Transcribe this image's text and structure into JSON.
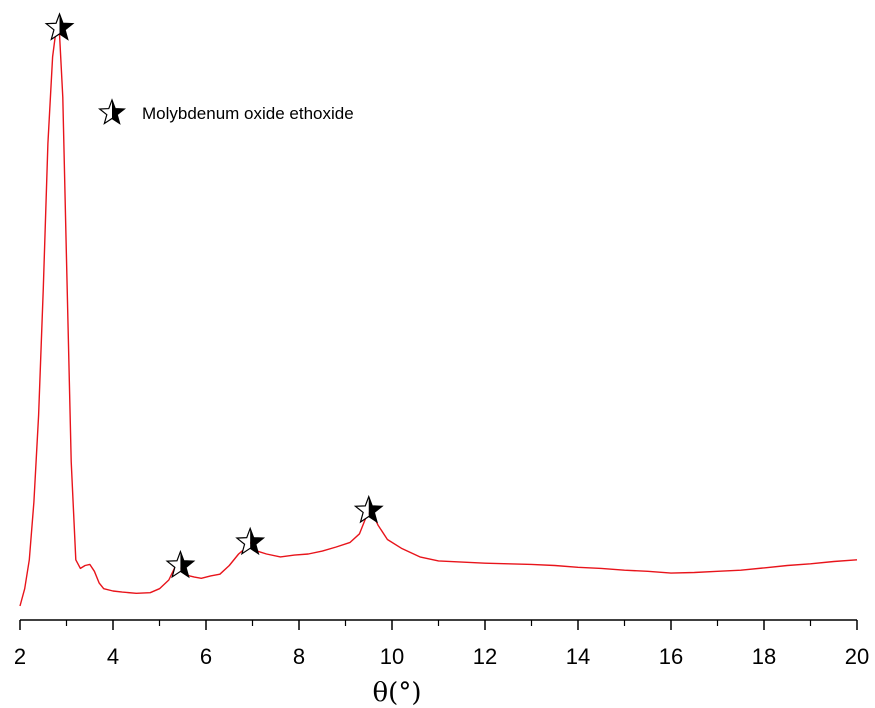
{
  "chart_data": {
    "type": "line",
    "title": "",
    "xlabel": "θ(°)",
    "ylabel": "",
    "xlim": [
      2,
      20
    ],
    "ylim": [
      0,
      1
    ],
    "grid": false,
    "x_ticks": [
      "2",
      "4",
      "6",
      "8",
      "10",
      "12",
      "14",
      "16",
      "18",
      "20"
    ],
    "y_ticks": [],
    "legend": {
      "placement": "top-left",
      "marker": "half-filled star",
      "label": "Molybdenum oxide ethoxide"
    },
    "series": [
      {
        "name": "",
        "color": "#e8141b",
        "x": [
          2.0,
          2.1,
          2.2,
          2.3,
          2.4,
          2.5,
          2.6,
          2.7,
          2.78,
          2.85,
          2.92,
          3.0,
          3.1,
          3.2,
          3.3,
          3.4,
          3.5,
          3.6,
          3.7,
          3.8,
          4.0,
          4.2,
          4.5,
          4.8,
          5.0,
          5.2,
          5.35,
          5.45,
          5.55,
          5.65,
          5.75,
          5.9,
          6.1,
          6.3,
          6.5,
          6.7,
          6.85,
          6.95,
          7.1,
          7.3,
          7.6,
          7.9,
          8.2,
          8.5,
          8.8,
          9.1,
          9.3,
          9.45,
          9.55,
          9.7,
          9.9,
          10.2,
          10.6,
          11.0,
          11.5,
          12.0,
          12.5,
          13.0,
          13.5,
          14.0,
          14.5,
          15.0,
          15.5,
          16.0,
          16.5,
          17.0,
          17.5,
          18.0,
          18.5,
          19.0,
          19.5,
          20.0
        ],
        "y": [
          0.0,
          0.03,
          0.08,
          0.18,
          0.33,
          0.55,
          0.8,
          0.95,
          1.0,
          0.99,
          0.88,
          0.6,
          0.25,
          0.08,
          0.065,
          0.07,
          0.072,
          0.06,
          0.04,
          0.03,
          0.026,
          0.024,
          0.022,
          0.023,
          0.03,
          0.045,
          0.07,
          0.065,
          0.055,
          0.052,
          0.05,
          0.048,
          0.052,
          0.055,
          0.07,
          0.09,
          0.1,
          0.11,
          0.095,
          0.09,
          0.085,
          0.088,
          0.09,
          0.095,
          0.102,
          0.11,
          0.125,
          0.155,
          0.165,
          0.14,
          0.115,
          0.1,
          0.085,
          0.078,
          0.076,
          0.074,
          0.073,
          0.072,
          0.07,
          0.067,
          0.065,
          0.062,
          0.06,
          0.057,
          0.058,
          0.06,
          0.062,
          0.066,
          0.07,
          0.073,
          0.077,
          0.08
        ]
      }
    ],
    "annotations": [
      {
        "marker": "half-filled star",
        "x": 2.85,
        "y": 1.0
      },
      {
        "marker": "half-filled star",
        "x": 5.45,
        "y": 0.07
      },
      {
        "marker": "half-filled star",
        "x": 6.95,
        "y": 0.11
      },
      {
        "marker": "half-filled star",
        "x": 9.5,
        "y": 0.165
      }
    ]
  }
}
